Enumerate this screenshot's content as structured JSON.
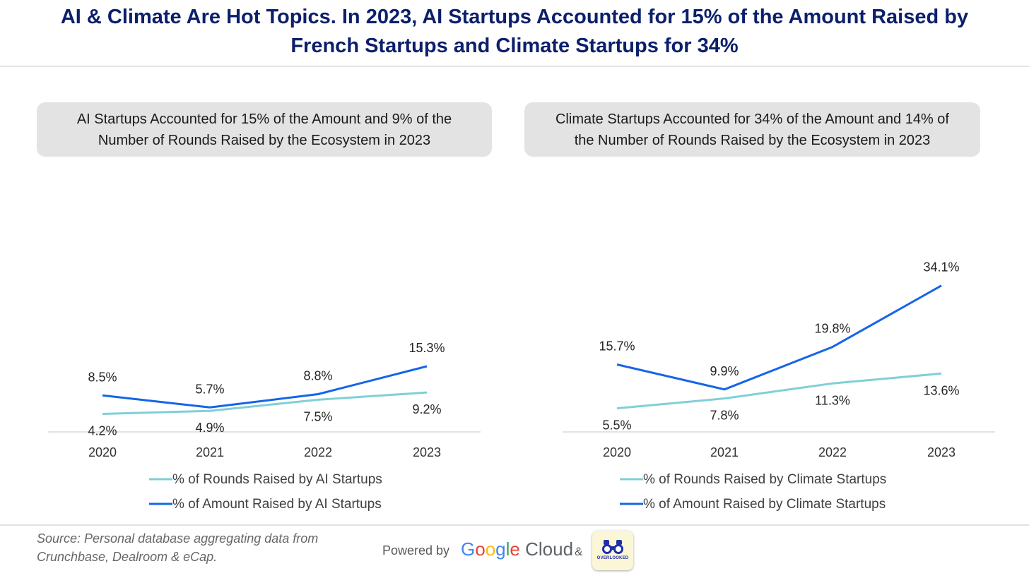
{
  "title_line1": "AI & Climate Are Hot Topics. In 2023, AI Startups Accounted for 15% of the Amount Raised by",
  "title_line2": "French Startups and Climate Startups for 34%",
  "colors": {
    "title": "#0b1f6b",
    "rounds": "#7fd0d6",
    "amount": "#1565e8",
    "subtitle_bg": "#e3e3e3"
  },
  "chart_data": [
    {
      "type": "line",
      "title": "AI Startups Accounted for 15% of the Amount and 9% of the Number of Rounds Raised by the Ecosystem in 2023",
      "categories": [
        "2020",
        "2021",
        "2022",
        "2023"
      ],
      "ylim": [
        0,
        36
      ],
      "grid": false,
      "legend": "bottom",
      "series": [
        {
          "name": "% of Rounds Raised by AI Startups",
          "color": "#7fd0d6",
          "values": [
            4.2,
            4.9,
            7.5,
            9.2
          ],
          "labels": [
            "4.2%",
            "4.9%",
            "7.5%",
            "9.2%"
          ]
        },
        {
          "name": "% of Amount Raised by AI Startups",
          "color": "#1565e8",
          "values": [
            8.5,
            5.7,
            8.8,
            15.3
          ],
          "labels": [
            "8.5%",
            "5.7%",
            "8.8%",
            "15.3%"
          ]
        }
      ]
    },
    {
      "type": "line",
      "title": "Climate Startups Accounted for 34% of the Amount and 14% of the Number of Rounds Raised by the Ecosystem in 2023",
      "categories": [
        "2020",
        "2021",
        "2022",
        "2023"
      ],
      "ylim": [
        0,
        36
      ],
      "grid": false,
      "legend": "bottom",
      "series": [
        {
          "name": "% of Rounds Raised by Climate Startups",
          "color": "#7fd0d6",
          "values": [
            5.5,
            7.8,
            11.3,
            13.6
          ],
          "labels": [
            "5.5%",
            "7.8%",
            "11.3%",
            "13.6%"
          ]
        },
        {
          "name": "% of Amount Raised by Climate Startups",
          "color": "#1565e8",
          "values": [
            15.7,
            9.9,
            19.8,
            34.1
          ],
          "labels": [
            "15.7%",
            "9.9%",
            "19.8%",
            "34.1%"
          ]
        }
      ]
    }
  ],
  "subtitle_left_line1": "AI Startups Accounted for 15% of the Amount and 9% of the",
  "subtitle_left_line2": "Number of Rounds Raised by the Ecosystem in 2023",
  "subtitle_right_line1": "Climate Startups Accounted for 34% of the Amount and 14% of",
  "subtitle_right_line2": "the Number of Rounds Raised by the Ecosystem in 2023",
  "footer": {
    "source_line1": "Source: Personal database aggregating data from",
    "source_line2": "Crunchbase, Dealroom & eCap.",
    "powered_by": "Powered by",
    "google_word": "Google",
    "cloud_word": " Cloud",
    "amp": "&",
    "logo_text": "OVERLOOKED",
    "google_icon": "google-cloud-logo",
    "partner_icon": "binoculars-logo"
  }
}
